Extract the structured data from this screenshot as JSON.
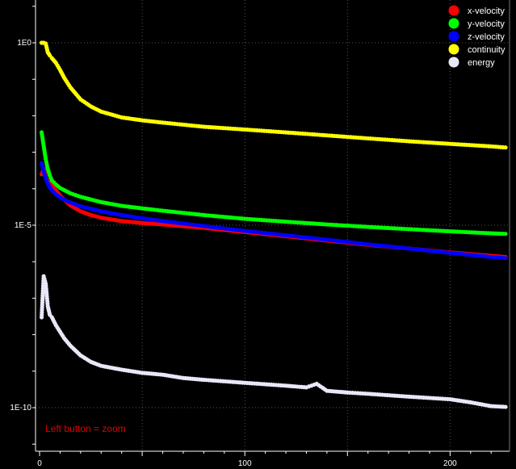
{
  "hint": "Left button = zoom",
  "colors": {
    "background": "#000000",
    "grid": "#555555",
    "axis": "#ffffff",
    "hint": "#e00000"
  },
  "chart_data": {
    "type": "line",
    "title": "",
    "xlabel": "",
    "ylabel": "",
    "y_scale": "log",
    "xlim": [
      0,
      227
    ],
    "ylim": [
      1e-11,
      10.0
    ],
    "x_ticks": [
      0,
      100,
      200
    ],
    "x_tick_labels": [
      "0",
      "100",
      "200"
    ],
    "y_ticks": [
      1,
      1e-05,
      1e-10
    ],
    "y_tick_labels": [
      "1E0",
      "1E-5",
      "1E-10"
    ],
    "grid": true,
    "legend_position": "top-right",
    "series": [
      {
        "name": "x-velocity",
        "color": "#ff0000",
        "x": [
          1,
          2,
          3,
          4,
          5,
          6,
          8,
          10,
          12,
          15,
          20,
          25,
          30,
          40,
          50,
          60,
          80,
          100,
          120,
          140,
          160,
          180,
          200,
          220,
          227
        ],
        "y": [
          0.00025,
          0.00035,
          0.0002,
          0.00016,
          0.00014,
          0.00012,
          9e-05,
          6.5e-05,
          5e-05,
          3.5e-05,
          2.4e-05,
          1.9e-05,
          1.6e-05,
          1.3e-05,
          1.15e-05,
          1.05e-05,
          8.5e-06,
          6.5e-06,
          5e-06,
          3.8e-06,
          2.9e-06,
          2.3e-06,
          1.8e-06,
          1.45e-06,
          1.35e-06
        ]
      },
      {
        "name": "y-velocity",
        "color": "#00ff00",
        "x": [
          1,
          2,
          3,
          4,
          5,
          6,
          8,
          10,
          15,
          20,
          30,
          40,
          50,
          60,
          80,
          100,
          120,
          140,
          160,
          180,
          200,
          220,
          227
        ],
        "y": [
          0.0035,
          0.0015,
          0.00065,
          0.00035,
          0.00023,
          0.00017,
          0.00013,
          0.000105,
          7.5e-05,
          6e-05,
          4.3e-05,
          3.4e-05,
          2.9e-05,
          2.5e-05,
          1.9e-05,
          1.5e-05,
          1.25e-05,
          1.05e-05,
          9e-06,
          7.8e-06,
          6.8e-06,
          6e-06,
          5.8e-06
        ]
      },
      {
        "name": "z-velocity",
        "color": "#0000ff",
        "x": [
          1,
          2,
          3,
          4,
          5,
          6,
          8,
          10,
          12,
          15,
          20,
          30,
          40,
          50,
          60,
          80,
          100,
          120,
          140,
          160,
          180,
          200,
          220,
          227
        ],
        "y": [
          0.0005,
          0.0003,
          0.00019,
          0.00014,
          0.00011,
          9e-05,
          7e-05,
          5.8e-05,
          5e-05,
          4.2e-05,
          3.3e-05,
          2.4e-05,
          1.9e-05,
          1.55e-05,
          1.3e-05,
          9.5e-06,
          7e-06,
          5.3e-06,
          4e-06,
          3e-06,
          2.3e-06,
          1.75e-06,
          1.35e-06,
          1.25e-06
        ]
      },
      {
        "name": "continuity",
        "color": "#ffff00",
        "x": [
          1,
          2,
          3,
          4,
          5,
          6,
          8,
          10,
          12,
          15,
          20,
          25,
          30,
          40,
          50,
          60,
          80,
          100,
          120,
          140,
          160,
          180,
          200,
          220,
          227
        ],
        "y": [
          1.0,
          1.0,
          0.95,
          0.55,
          0.45,
          0.38,
          0.28,
          0.18,
          0.11,
          0.06,
          0.028,
          0.018,
          0.013,
          0.009,
          0.0075,
          0.0065,
          0.005,
          0.0042,
          0.0035,
          0.0029,
          0.0024,
          0.002,
          0.0017,
          0.00145,
          0.00135
        ]
      },
      {
        "name": "energy",
        "color": "#e8e8f8",
        "x": [
          1,
          2,
          3,
          4,
          5,
          6,
          8,
          10,
          12,
          15,
          20,
          25,
          30,
          40,
          50,
          60,
          70,
          80,
          100,
          120,
          130,
          135,
          140,
          150,
          160,
          180,
          200,
          210,
          220,
          227
        ],
        "y": [
          3e-08,
          4e-07,
          2.5e-07,
          6e-08,
          3.5e-08,
          3e-08,
          1.8e-08,
          1.2e-08,
          8e-09,
          5e-09,
          2.7e-09,
          1.8e-09,
          1.4e-09,
          1.1e-09,
          9e-10,
          8e-10,
          6.5e-10,
          5.8e-10,
          4.8e-10,
          4e-10,
          3.6e-10,
          4.5e-10,
          2.9e-10,
          2.6e-10,
          2.4e-10,
          2e-10,
          1.7e-10,
          1.4e-10,
          1.1e-10,
          1.05e-10
        ]
      }
    ]
  }
}
